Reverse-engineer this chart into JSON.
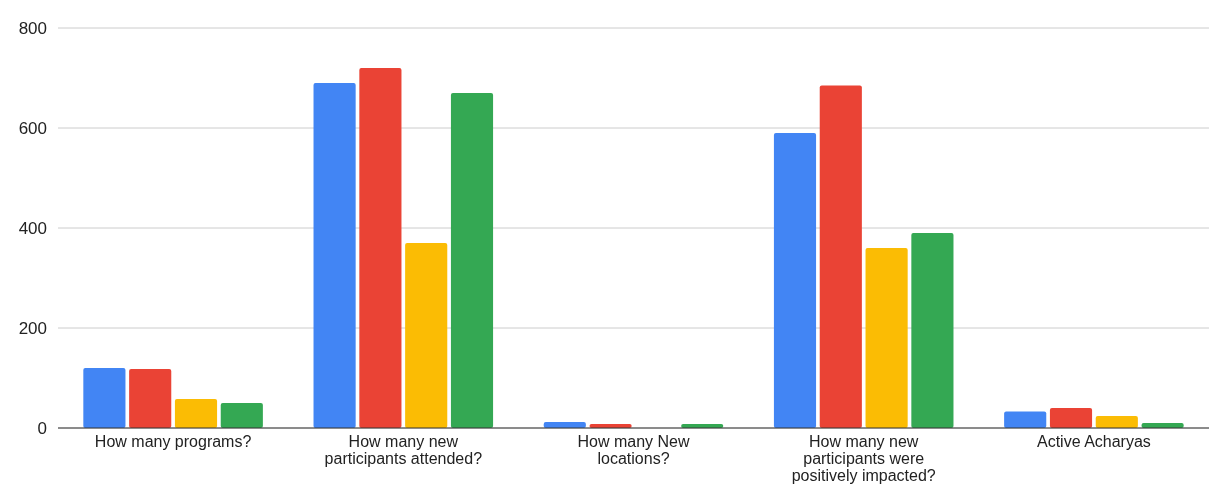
{
  "chart_data": {
    "type": "bar",
    "categories": [
      "How many programs?",
      "How many new participants attended?",
      "How many New locations?",
      "How many new participants were positively impacted?",
      "Active Acharyas"
    ],
    "series": [
      {
        "color": "#4285f4",
        "values": [
          120,
          690,
          12,
          590,
          33
        ]
      },
      {
        "color": "#ea4335",
        "values": [
          118,
          720,
          8,
          685,
          40
        ]
      },
      {
        "color": "#fbbc04",
        "values": [
          58,
          370,
          0,
          360,
          24
        ]
      },
      {
        "color": "#34a853",
        "values": [
          50,
          670,
          8,
          390,
          10
        ]
      }
    ],
    "ylim": [
      0,
      800
    ],
    "yticks": [
      0,
      200,
      400,
      600,
      800
    ],
    "grid": "y"
  }
}
